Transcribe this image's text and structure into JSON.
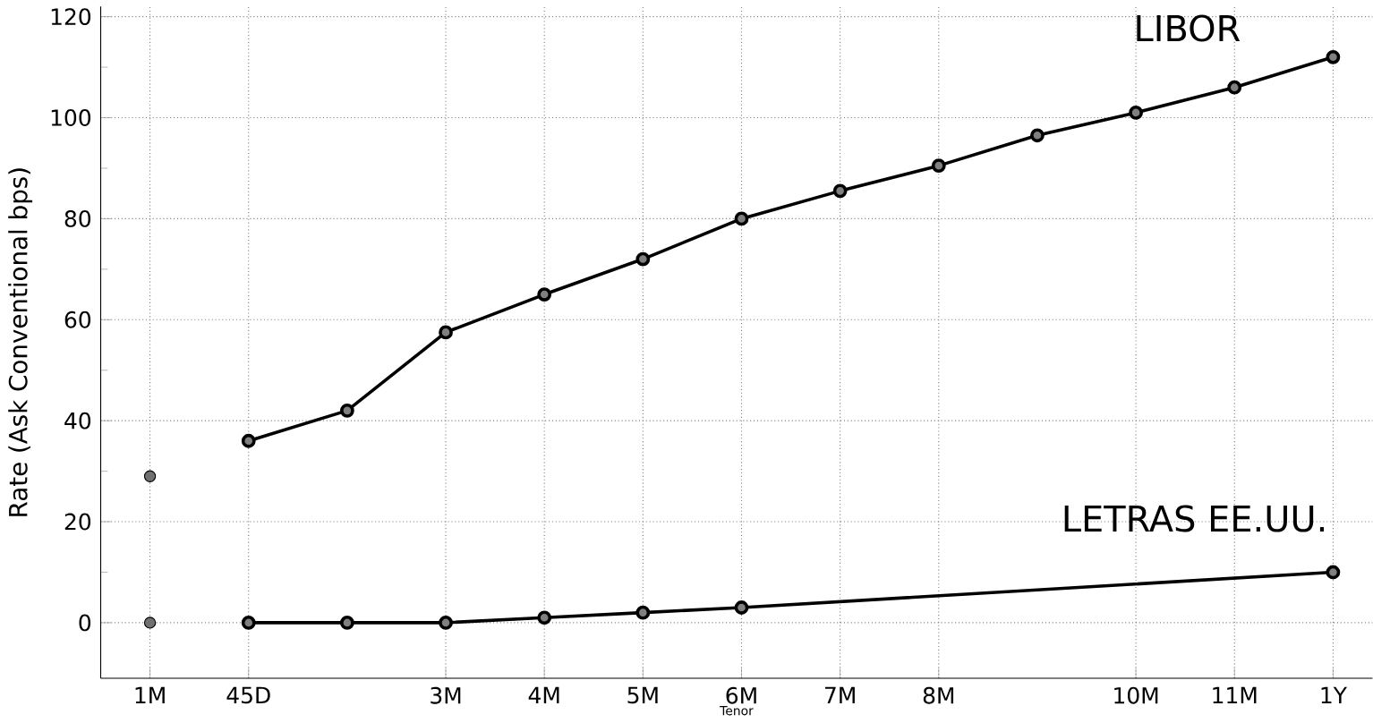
{
  "chart_data": {
    "type": "line",
    "xlabel": "Tenor",
    "ylabel": "Rate (Ask Conventional bps)",
    "categories": [
      "1M",
      "45D",
      null,
      "3M",
      "4M",
      "5M",
      "6M",
      "7M",
      "8M",
      null,
      "10M",
      "11M",
      "1Y"
    ],
    "ylim": [
      -11,
      122
    ],
    "yticks": [
      0,
      20,
      40,
      60,
      80,
      100,
      120
    ],
    "grid": true,
    "marker": "circle",
    "line_style": "solid",
    "series": [
      {
        "type": "scatter",
        "color": "#707070",
        "values": [
          29,
          null,
          null,
          null,
          null,
          null,
          null,
          null,
          null,
          null,
          null,
          null,
          null
        ]
      },
      {
        "type": "line",
        "name": "LIBOR",
        "color": "#000000",
        "values": [
          null,
          36,
          42,
          57.5,
          65,
          72,
          80,
          85.5,
          90.5,
          96.5,
          101,
          106,
          112
        ]
      },
      {
        "type": "scatter",
        "color": "#707070",
        "values": [
          0,
          null,
          null,
          null,
          null,
          null,
          null,
          null,
          null,
          null,
          null,
          null,
          null
        ]
      },
      {
        "type": "line",
        "name": "LETRAS EE.UU.",
        "color": "#000000",
        "values": [
          null,
          0,
          0,
          0,
          1,
          2,
          3,
          null,
          null,
          null,
          null,
          null,
          10
        ]
      }
    ]
  }
}
